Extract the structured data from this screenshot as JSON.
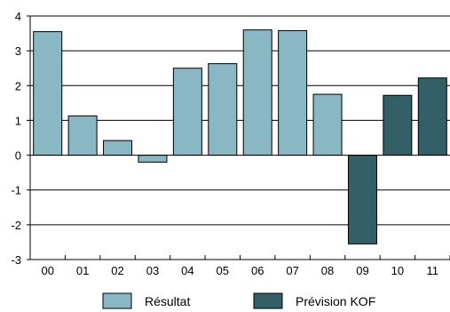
{
  "chart_data": {
    "type": "bar",
    "categories": [
      "00",
      "01",
      "02",
      "03",
      "04",
      "05",
      "06",
      "07",
      "08",
      "09",
      "10",
      "11"
    ],
    "values": [
      3.55,
      1.13,
      0.42,
      -0.2,
      2.5,
      2.63,
      3.6,
      3.58,
      1.75,
      -2.55,
      1.72,
      2.22
    ],
    "series_index": [
      0,
      0,
      0,
      0,
      0,
      0,
      0,
      0,
      0,
      1,
      1,
      1
    ],
    "series": [
      {
        "name": "Résultat",
        "color": "#89b7c4"
      },
      {
        "name": "Prévision KOF",
        "color": "#336066"
      }
    ],
    "ylim": [
      -3,
      4
    ],
    "yticks": [
      4,
      3,
      2,
      1,
      0,
      -1,
      -2,
      -3
    ],
    "grid": true,
    "legend_position": "bottom",
    "title": "",
    "xlabel": "",
    "ylabel": ""
  },
  "legend": {
    "items": [
      {
        "label": "Résultat"
      },
      {
        "label": "Prévision KOF"
      }
    ]
  }
}
